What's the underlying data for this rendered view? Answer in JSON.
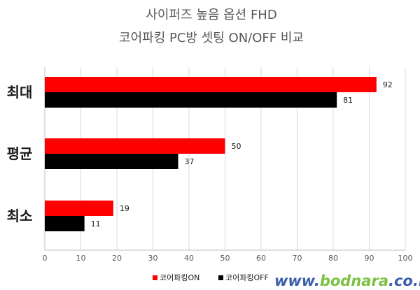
{
  "colors": {
    "on": "#ff0000",
    "off": "#000000",
    "grid": "#d9d9d9",
    "axis": "#bfbfbf"
  },
  "watermark": {
    "part1": "www.",
    "part2": "bodnara",
    "part3": ".co.kr"
  },
  "chart_data": {
    "type": "bar",
    "orientation": "horizontal",
    "title": [
      "사이퍼즈 높음 옵션 FHD",
      "코어파킹 PC방 셋팅 ON/OFF 비교"
    ],
    "categories": [
      "최대",
      "평균",
      "최소"
    ],
    "series": [
      {
        "name": "코어파킹ON",
        "color": "#ff0000",
        "values": [
          92,
          50,
          19
        ]
      },
      {
        "name": "코어파킹OFF",
        "color": "#000000",
        "values": [
          81,
          37,
          11
        ]
      }
    ],
    "xlim": [
      0,
      100
    ],
    "xticks": [
      0,
      10,
      20,
      30,
      40,
      50,
      60,
      70,
      80,
      90,
      100
    ],
    "grid": true,
    "legend_position": "bottom",
    "data_labels": true
  }
}
